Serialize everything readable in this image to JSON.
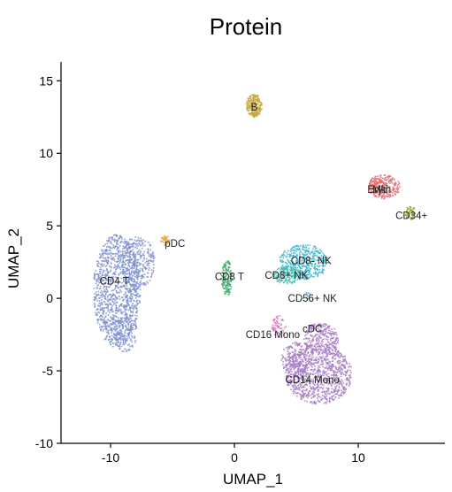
{
  "chart_data": {
    "type": "scatter",
    "title": "Protein",
    "xlabel": "UMAP_1",
    "ylabel": "UMAP_2",
    "xlim": [
      -14,
      17
    ],
    "ylim": [
      -10,
      16.3
    ],
    "xticks": [
      -10,
      0,
      10
    ],
    "yticks": [
      -10,
      -5,
      0,
      5,
      10,
      15
    ],
    "grid": false,
    "legend": "none",
    "clusters": [
      {
        "name": "CD4 T",
        "color": "#7b8fcc",
        "label_x": -9.7,
        "label_y": 1.2,
        "blobs": [
          {
            "cx": -9.5,
            "cy": 0.5,
            "rx": 1.9,
            "ry": 3.9,
            "n": 1200
          },
          {
            "cx": -7.8,
            "cy": 2.5,
            "rx": 1.4,
            "ry": 1.8,
            "n": 300
          },
          {
            "cx": -8.8,
            "cy": -2.5,
            "rx": 1.0,
            "ry": 1.2,
            "n": 120
          }
        ]
      },
      {
        "name": "pDC",
        "color": "#e8a23a",
        "label_x": -4.8,
        "label_y": 3.8,
        "blobs": [
          {
            "cx": -5.6,
            "cy": 4.0,
            "rx": 0.35,
            "ry": 0.35,
            "n": 35
          }
        ]
      },
      {
        "name": "B",
        "color": "#c9a43a",
        "label_x": 1.6,
        "label_y": 13.2,
        "blobs": [
          {
            "cx": 1.6,
            "cy": 13.3,
            "rx": 0.65,
            "ry": 0.8,
            "n": 220
          }
        ]
      },
      {
        "name": "Mk",
        "color": "#e0707a",
        "label_x": 11.7,
        "label_y": 7.5,
        "blobs": [
          {
            "cx": 12.1,
            "cy": 7.7,
            "rx": 1.3,
            "ry": 0.85,
            "n": 250
          }
        ]
      },
      {
        "name": "Eryth",
        "color": "#e86a5e",
        "label_x": 11.7,
        "label_y": 7.5,
        "blobs": [
          {
            "cx": 11.4,
            "cy": 7.8,
            "rx": 0.6,
            "ry": 0.5,
            "n": 60
          }
        ]
      },
      {
        "name": "CD34+",
        "color": "#8aa632",
        "label_x": 14.3,
        "label_y": 5.7,
        "blobs": [
          {
            "cx": 14.2,
            "cy": 5.9,
            "rx": 0.4,
            "ry": 0.5,
            "n": 50
          }
        ]
      },
      {
        "name": "CD8 T",
        "color": "#3caa6a",
        "label_x": -0.4,
        "label_y": 1.5,
        "blobs": [
          {
            "cx": -0.6,
            "cy": 1.4,
            "rx": 0.45,
            "ry": 1.2,
            "n": 150
          }
        ]
      },
      {
        "name": "CD8- NK",
        "color": "#3bb5cc",
        "label_x": 6.2,
        "label_y": 2.6,
        "blobs": [
          {
            "cx": 5.6,
            "cy": 2.5,
            "rx": 2.0,
            "ry": 1.2,
            "n": 450
          }
        ]
      },
      {
        "name": "CD8+ NK",
        "color": "#4cc0b0",
        "label_x": 4.2,
        "label_y": 1.6,
        "blobs": [
          {
            "cx": 4.2,
            "cy": 1.6,
            "rx": 1.2,
            "ry": 0.6,
            "n": 160
          }
        ]
      },
      {
        "name": "CD56+ NK",
        "color": "#68c0e0",
        "label_x": 6.3,
        "label_y": 0.0,
        "blobs": [
          {
            "cx": 6.0,
            "cy": 0.1,
            "rx": 0.5,
            "ry": 0.3,
            "n": 15
          }
        ]
      },
      {
        "name": "CD16 Mono",
        "color": "#e060b4",
        "label_x": 3.1,
        "label_y": -2.5,
        "blobs": [
          {
            "cx": 3.6,
            "cy": -2.0,
            "rx": 0.6,
            "ry": 0.8,
            "n": 50
          }
        ]
      },
      {
        "name": "cDC",
        "color": "#b06ad0",
        "label_x": 6.3,
        "label_y": -2.1,
        "blobs": [
          {
            "cx": 6.3,
            "cy": -2.1,
            "rx": 0.3,
            "ry": 0.3,
            "n": 15
          }
        ]
      },
      {
        "name": "CD14 Mono",
        "color": "#a77cc4",
        "label_x": 6.3,
        "label_y": -5.6,
        "blobs": [
          {
            "cx": 6.8,
            "cy": -5.2,
            "rx": 2.7,
            "ry": 2.1,
            "n": 1000
          },
          {
            "cx": 7.0,
            "cy": -2.8,
            "rx": 1.4,
            "ry": 1.1,
            "n": 250
          },
          {
            "cx": 4.9,
            "cy": -4.2,
            "rx": 1.1,
            "ry": 1.2,
            "n": 180
          }
        ]
      }
    ]
  }
}
